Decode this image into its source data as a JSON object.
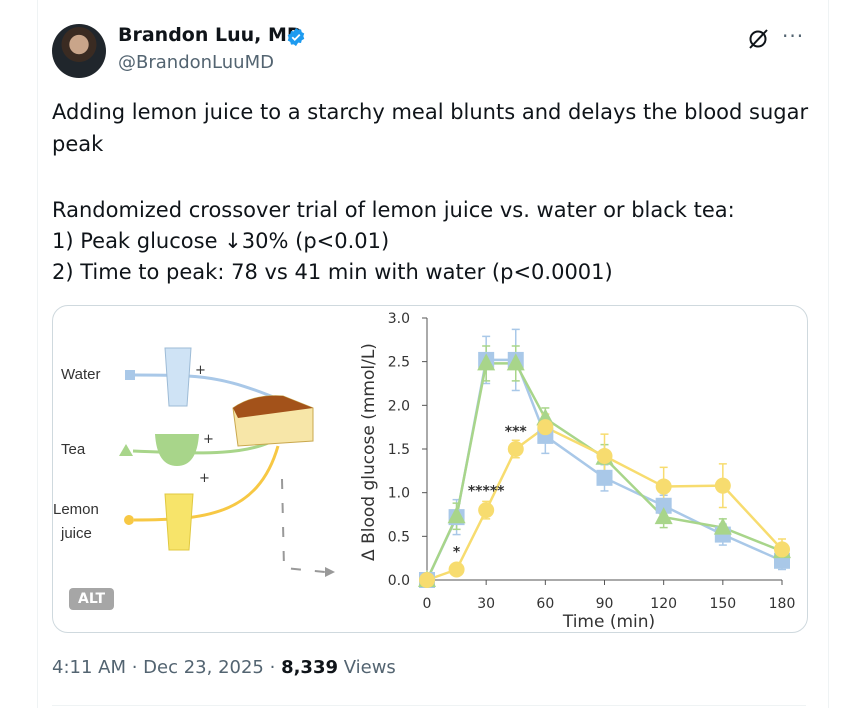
{
  "author": {
    "name": "Brandon Luu, MD",
    "handle": "@BrandonLuuMD"
  },
  "tweet": {
    "line1": "Adding lemon juice to a starchy meal blunts and delays the blood sugar",
    "line2": "peak",
    "line3": "Randomized crossover trial of lemon juice vs. water or black tea:",
    "line4": "1) Peak glucose ↓30% (p<0.01)",
    "line5": "2) Time to peak: 78 vs 41 min with water (p<0.0001)"
  },
  "illustration": {
    "water": "Water",
    "tea": "Tea",
    "lemon1": "Lemon",
    "lemon2": "juice",
    "plus": "+"
  },
  "alt_badge": "ALT",
  "meta": {
    "time": "4:11 AM",
    "sep1": " · ",
    "date": "Dec 23, 2025",
    "sep2": " · ",
    "views": "8,339",
    "views_label": " Views"
  },
  "more_label": "···",
  "chart_data": {
    "type": "line",
    "xlabel": "Time (min)",
    "ylabel": "Δ Blood glucose (mmol/L)",
    "x": [
      0,
      15,
      30,
      45,
      60,
      90,
      120,
      150,
      180
    ],
    "xticks": [
      "0",
      "30",
      "60",
      "90",
      "120",
      "150",
      "180"
    ],
    "yticks": [
      "0.0",
      "0.5",
      "1.0",
      "1.5",
      "2.0",
      "2.5",
      "3.0"
    ],
    "xlim": [
      0,
      180
    ],
    "ylim": [
      0,
      3.0
    ],
    "series": [
      {
        "name": "Water",
        "color": "#a9c8e8",
        "marker": "square",
        "values": [
          0.0,
          0.72,
          2.52,
          2.52,
          1.65,
          1.17,
          0.85,
          0.52,
          0.22
        ],
        "err": [
          0,
          0.2,
          0.27,
          0.35,
          0.2,
          0.15,
          0.12,
          0.12,
          0.1
        ]
      },
      {
        "name": "Tea",
        "color": "#a8d58a",
        "marker": "triangle",
        "values": [
          0.0,
          0.73,
          2.48,
          2.48,
          1.85,
          1.4,
          0.72,
          0.6,
          0.33
        ],
        "err": [
          0,
          0.15,
          0.2,
          0.2,
          0.12,
          0.15,
          0.12,
          0.1,
          0.08
        ]
      },
      {
        "name": "Lemon juice",
        "color": "#f7dc6f",
        "marker": "circle",
        "values": [
          0.0,
          0.12,
          0.8,
          1.5,
          1.75,
          1.42,
          1.07,
          1.08,
          0.35
        ],
        "err": [
          0,
          0.05,
          0.1,
          0.1,
          0.15,
          0.25,
          0.22,
          0.25,
          0.12
        ]
      }
    ],
    "annotations": [
      {
        "text": "*",
        "x": 15,
        "y": 0.27
      },
      {
        "text": "*****",
        "x": 30,
        "y": 0.97
      },
      {
        "text": "***",
        "x": 45,
        "y": 1.65
      }
    ]
  }
}
